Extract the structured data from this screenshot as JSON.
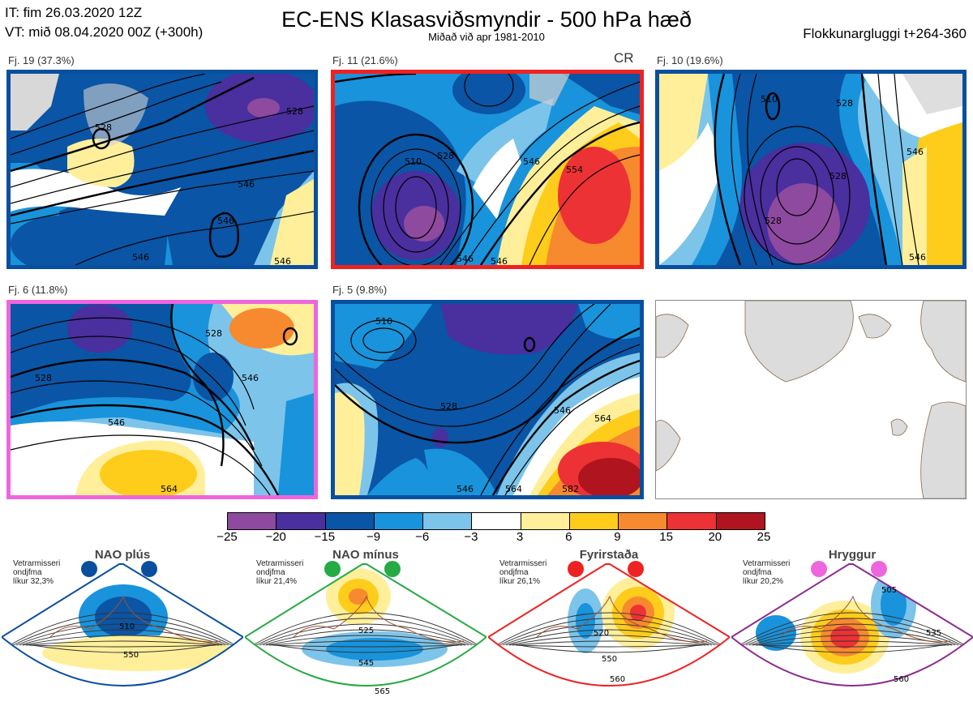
{
  "header": {
    "it": "IT: fim 26.03.2020 12Z",
    "vt": "VT: mið 08.04.2020 00Z  (+300h)",
    "title": "EC-ENS Klasasviðsmyndir - 500 hPa hæð",
    "subtitle": "Miðað við apr 1981-2010",
    "window": "Flokkunargluggi t+264-360"
  },
  "panels": [
    {
      "label": "Fj. 19 (37.3%)",
      "border": "#0a4f9e",
      "contours": [
        "528",
        "546",
        "546",
        "546",
        "546",
        "528"
      ]
    },
    {
      "label": "Fj. 11 (21.6%)",
      "border": "#ee2222",
      "tag": "CR",
      "contours": [
        "528",
        "510",
        "546",
        "554",
        "546",
        "546"
      ]
    },
    {
      "label": "Fj. 10 (19.6%)",
      "border": "#0a4f9e",
      "contours": [
        "510",
        "528",
        "528",
        "528",
        "546",
        "546"
      ]
    },
    {
      "label": "Fj. 6 (11.8%)",
      "border": "#ee66dd",
      "contours": [
        "528",
        "546",
        "546",
        "528",
        "564"
      ]
    },
    {
      "label": "Fj. 5 (9.8%)",
      "border": "#0a4f9e",
      "contours": [
        "510",
        "528",
        "546",
        "546",
        "564",
        "564",
        "582"
      ]
    }
  ],
  "colorbar": {
    "ticks": [
      "−25",
      "−20",
      "−15",
      "−9",
      "−6",
      "−3",
      "3",
      "6",
      "9",
      "15",
      "20",
      "25"
    ],
    "colors": [
      "#8e4a9e",
      "#4a2f9e",
      "#0a55a5",
      "#1993db",
      "#7cc4ea",
      "#ffffff",
      "#ffef9a",
      "#fecc1b",
      "#f7892e",
      "#ec3234",
      "#b0141e"
    ]
  },
  "regimes": [
    {
      "name": "NAO plús",
      "l1": "Vetrarmisseri",
      "l2": "ondjfma",
      "l3": "líkur 32,3%",
      "color": "#0a4f9e",
      "contours": [
        "510",
        "550"
      ]
    },
    {
      "name": "NAO mínus",
      "l1": "Vetrarmisseri",
      "l2": "ondjfma",
      "l3": "líkur 21,4%",
      "color": "#26aa44",
      "contours": [
        "525",
        "545",
        "565"
      ]
    },
    {
      "name": "Fyrirstaða",
      "l1": "Vetrarmisseri",
      "l2": "ondjfma",
      "l3": "líkur 26,1%",
      "color": "#ee2222",
      "contours": [
        "520",
        "550",
        "560"
      ]
    },
    {
      "name": "Hryggur",
      "l1": "Vetrarmisseri",
      "l2": "ondjfma",
      "l3": "líkur 20,2%",
      "color": "#8a2b8e",
      "contours": [
        "505",
        "535",
        "560"
      ]
    }
  ]
}
